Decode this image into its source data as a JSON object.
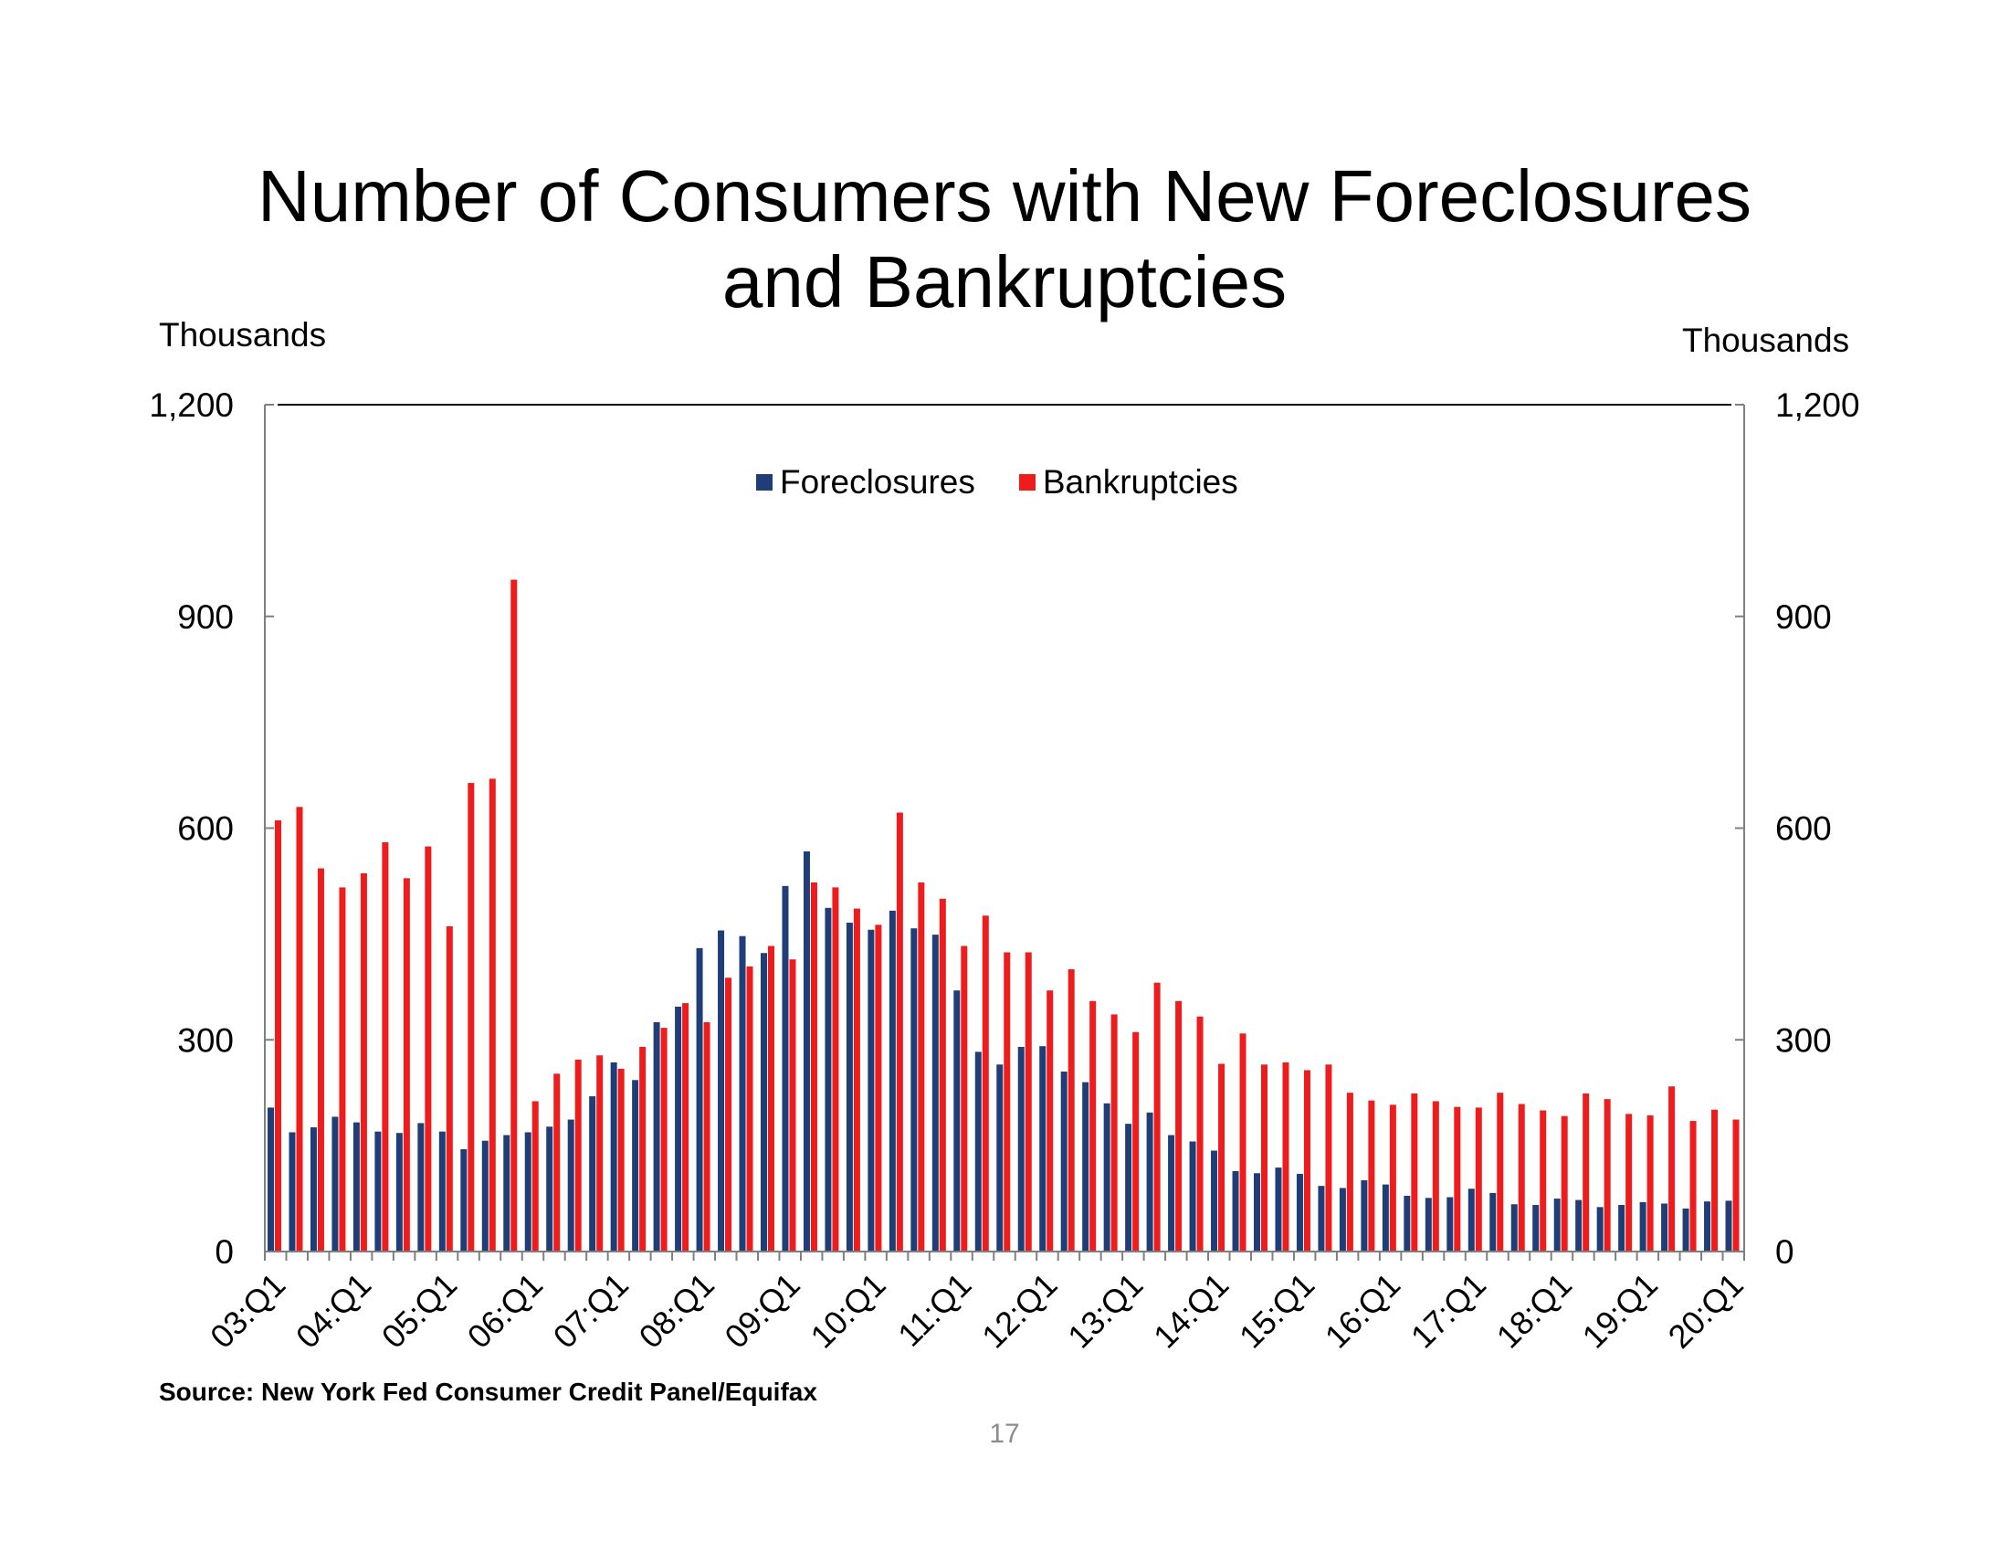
{
  "title_line1": "Number of Consumers with New Foreclosures",
  "title_line2": "and Bankruptcies",
  "source": "Source: New York Fed Consumer Credit Panel/Equifax",
  "page_number": "17",
  "colors": {
    "foreclosures": "#1f3e78",
    "bankruptcies": "#ee1c1c"
  },
  "chart_data": {
    "type": "bar",
    "title": "Number of Consumers with New Foreclosures and Bankruptcies",
    "ylabel_left": "Thousands",
    "ylabel_right": "Thousands",
    "ylim": [
      0,
      1200
    ],
    "yticks": [
      "0",
      "300",
      "600",
      "900",
      "1,200"
    ],
    "ytick_values": [
      0,
      300,
      600,
      900,
      1200
    ],
    "xtick_labels": [
      "03:Q1",
      "04:Q1",
      "05:Q1",
      "06:Q1",
      "07:Q1",
      "08:Q1",
      "09:Q1",
      "10:Q1",
      "11:Q1",
      "12:Q1",
      "13:Q1",
      "14:Q1",
      "15:Q1",
      "16:Q1",
      "17:Q1",
      "18:Q1",
      "19:Q1",
      "20:Q1"
    ],
    "categories": [
      "03:Q1",
      "03:Q2",
      "03:Q3",
      "03:Q4",
      "04:Q1",
      "04:Q2",
      "04:Q3",
      "04:Q4",
      "05:Q1",
      "05:Q2",
      "05:Q3",
      "05:Q4",
      "06:Q1",
      "06:Q2",
      "06:Q3",
      "06:Q4",
      "07:Q1",
      "07:Q2",
      "07:Q3",
      "07:Q4",
      "08:Q1",
      "08:Q2",
      "08:Q3",
      "08:Q4",
      "09:Q1",
      "09:Q2",
      "09:Q3",
      "09:Q4",
      "10:Q1",
      "10:Q2",
      "10:Q3",
      "10:Q4",
      "11:Q1",
      "11:Q2",
      "11:Q3",
      "11:Q4",
      "12:Q1",
      "12:Q2",
      "12:Q3",
      "12:Q4",
      "13:Q1",
      "13:Q2",
      "13:Q3",
      "13:Q4",
      "14:Q1",
      "14:Q2",
      "14:Q3",
      "14:Q4",
      "15:Q1",
      "15:Q2",
      "15:Q3",
      "15:Q4",
      "16:Q1",
      "16:Q2",
      "16:Q3",
      "16:Q4",
      "17:Q1",
      "17:Q2",
      "17:Q3",
      "17:Q4",
      "18:Q1",
      "18:Q2",
      "18:Q3",
      "18:Q4",
      "19:Q1",
      "19:Q2",
      "19:Q3",
      "19:Q4",
      "20:Q1"
    ],
    "legend_position": "top-center",
    "series": [
      {
        "name": "Foreclosures",
        "values": [
          204,
          169,
          176,
          191,
          183,
          170,
          168,
          182,
          170,
          145,
          157,
          165,
          169,
          177,
          187,
          220,
          268,
          243,
          325,
          347,
          430,
          455,
          447,
          423,
          518,
          567,
          487,
          466,
          456,
          483,
          458,
          449,
          370,
          283,
          265,
          290,
          291,
          255,
          240,
          210,
          181,
          197,
          165,
          156,
          143,
          114,
          111,
          119,
          110,
          93,
          90,
          101,
          95,
          79,
          76,
          77,
          89,
          83,
          67,
          66,
          75,
          73,
          63,
          66,
          70,
          68,
          61,
          71,
          72
        ]
      },
      {
        "name": "Bankruptcies",
        "values": [
          611,
          630,
          543,
          516,
          536,
          580,
          529,
          574,
          461,
          664,
          670,
          952,
          213,
          252,
          272,
          278,
          259,
          290,
          317,
          352,
          325,
          388,
          404,
          433,
          414,
          523,
          516,
          486,
          463,
          622,
          523,
          500,
          433,
          476,
          424,
          424,
          370,
          400,
          355,
          336,
          311,
          381,
          355,
          333,
          266,
          309,
          265,
          268,
          257,
          265,
          225,
          214,
          208,
          224,
          213,
          205,
          204,
          225,
          209,
          200,
          192,
          224,
          216,
          195,
          193,
          234,
          185,
          201,
          187
        ]
      }
    ]
  }
}
